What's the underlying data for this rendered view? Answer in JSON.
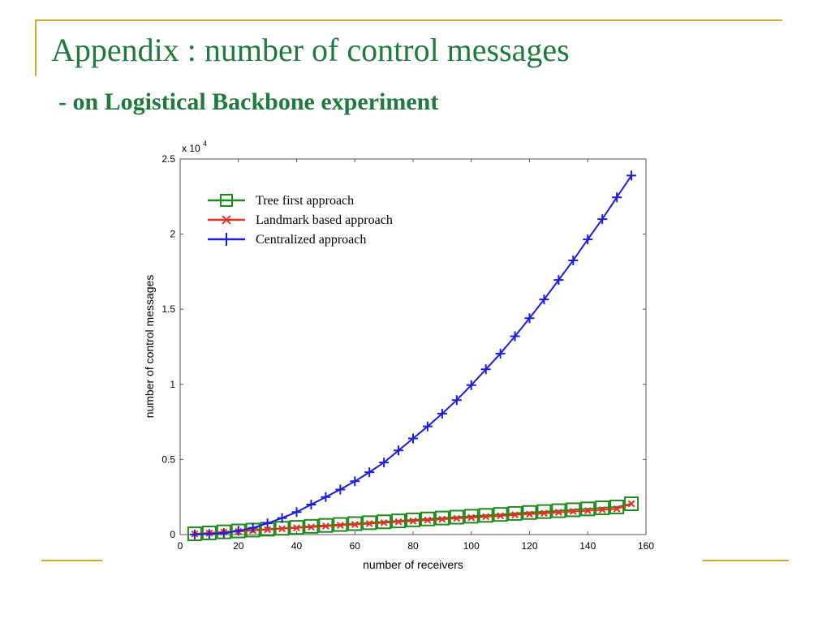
{
  "slide": {
    "title": "Appendix : number of control messages",
    "subtitle": "- on Logistical Backbone experiment",
    "accent_color": "#d2a72b",
    "title_color": "#1f7a3b"
  },
  "chart_data": {
    "type": "line",
    "xlabel": "number of receivers",
    "ylabel": "number of control messages",
    "y_multiplier": "x 10",
    "y_multiplier_exp": "4",
    "xlim": [
      0,
      160
    ],
    "ylim": [
      0,
      2.5
    ],
    "xticks": [
      "0",
      "20",
      "40",
      "60",
      "80",
      "100",
      "120",
      "140",
      "160"
    ],
    "yticks": [
      "0",
      "0.5",
      "1",
      "1.5",
      "2",
      "2.5"
    ],
    "grid": false,
    "legend_position": "top-left",
    "x": [
      5,
      10,
      15,
      20,
      25,
      30,
      35,
      40,
      45,
      50,
      55,
      60,
      65,
      70,
      75,
      80,
      85,
      90,
      95,
      100,
      105,
      110,
      115,
      120,
      125,
      130,
      135,
      140,
      145,
      150,
      155
    ],
    "series": [
      {
        "name": "Tree first approach",
        "color": "#1e8a1e",
        "marker": "square",
        "values": [
          0.005,
          0.011,
          0.018,
          0.024,
          0.03,
          0.036,
          0.042,
          0.048,
          0.055,
          0.061,
          0.067,
          0.073,
          0.079,
          0.085,
          0.091,
          0.098,
          0.104,
          0.11,
          0.116,
          0.122,
          0.128,
          0.134,
          0.141,
          0.147,
          0.153,
          0.159,
          0.165,
          0.171,
          0.178,
          0.184,
          0.205
        ]
      },
      {
        "name": "Landmark based approach",
        "color": "#e0321e",
        "marker": "x",
        "values": [
          0.004,
          0.01,
          0.016,
          0.021,
          0.027,
          0.033,
          0.039,
          0.044,
          0.05,
          0.056,
          0.062,
          0.067,
          0.073,
          0.079,
          0.085,
          0.09,
          0.096,
          0.102,
          0.108,
          0.113,
          0.119,
          0.125,
          0.131,
          0.136,
          0.142,
          0.148,
          0.154,
          0.159,
          0.165,
          0.171,
          0.205
        ]
      },
      {
        "name": "Centralized approach",
        "color": "#1c1ce0",
        "marker": "plus",
        "values": [
          0.001,
          0.004,
          0.01,
          0.025,
          0.045,
          0.075,
          0.11,
          0.15,
          0.2,
          0.25,
          0.3,
          0.355,
          0.415,
          0.48,
          0.56,
          0.64,
          0.72,
          0.805,
          0.895,
          0.995,
          1.1,
          1.205,
          1.32,
          1.44,
          1.565,
          1.695,
          1.825,
          1.965,
          2.1,
          2.245,
          2.39
        ]
      }
    ]
  }
}
